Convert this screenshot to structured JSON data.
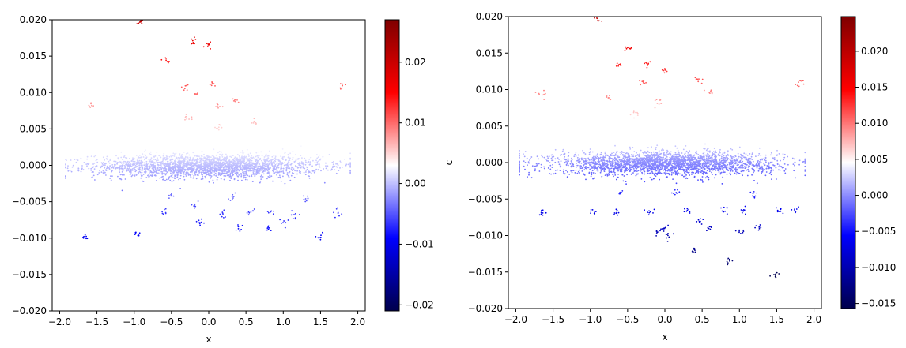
{
  "chart_data": [
    {
      "type": "scatter",
      "title": "",
      "xlabel": "x",
      "ylabel": "",
      "xlim": [
        -2.1,
        2.1
      ],
      "ylim": [
        -0.02,
        0.02
      ],
      "xticks": [
        "−2.0",
        "−1.5",
        "−1.0",
        "−0.5",
        "0.0",
        "0.5",
        "1.0",
        "1.5",
        "2.0"
      ],
      "xtick_values": [
        -2.0,
        -1.5,
        -1.0,
        -0.5,
        0.0,
        0.5,
        1.0,
        1.5,
        2.0
      ],
      "yticks": [
        "−0.020",
        "−0.015",
        "−0.010",
        "−0.005",
        "0.000",
        "0.005",
        "0.010",
        "0.015",
        "0.020"
      ],
      "ytick_values": [
        -0.02,
        -0.015,
        -0.01,
        -0.005,
        0.0,
        0.005,
        0.01,
        0.015,
        0.02
      ],
      "colormap": "seismic",
      "colorbar": {
        "range": [
          -0.021,
          0.027
        ],
        "ticks": [
          "−0.02",
          "−0.01",
          "0.00",
          "0.01",
          "0.02"
        ],
        "tick_values": [
          -0.02,
          -0.01,
          0.0,
          0.01,
          0.02
        ]
      },
      "band": {
        "x_range": [
          -1.92,
          1.9
        ],
        "y_center": -0.0001,
        "y_spread": 0.0008
      },
      "clusters": [
        {
          "x": -0.92,
          "y": 0.0198
        },
        {
          "x": -0.2,
          "y": 0.0172
        },
        {
          "x": 0.0,
          "y": 0.0165
        },
        {
          "x": -0.55,
          "y": 0.0143
        },
        {
          "x": -0.3,
          "y": 0.0108
        },
        {
          "x": -0.18,
          "y": 0.0098
        },
        {
          "x": 0.05,
          "y": 0.0112
        },
        {
          "x": 0.12,
          "y": 0.0082
        },
        {
          "x": 0.35,
          "y": 0.0088
        },
        {
          "x": 0.6,
          "y": 0.0058
        },
        {
          "x": -1.58,
          "y": 0.0082
        },
        {
          "x": 1.78,
          "y": 0.0108
        },
        {
          "x": -0.3,
          "y": 0.0065
        },
        {
          "x": 0.15,
          "y": 0.0052
        },
        {
          "x": -1.65,
          "y": -0.0098
        },
        {
          "x": -0.95,
          "y": -0.0094
        },
        {
          "x": -0.6,
          "y": -0.0065
        },
        {
          "x": -0.2,
          "y": -0.0055
        },
        {
          "x": -0.1,
          "y": -0.0078
        },
        {
          "x": 0.2,
          "y": -0.0068
        },
        {
          "x": 0.4,
          "y": -0.0085
        },
        {
          "x": 0.55,
          "y": -0.0065
        },
        {
          "x": 0.8,
          "y": -0.0088
        },
        {
          "x": 0.85,
          "y": -0.0065
        },
        {
          "x": 1.0,
          "y": -0.0078
        },
        {
          "x": 1.15,
          "y": -0.0068
        },
        {
          "x": 1.3,
          "y": -0.0045
        },
        {
          "x": 1.5,
          "y": -0.0098
        },
        {
          "x": 1.72,
          "y": -0.0065
        },
        {
          "x": -0.5,
          "y": -0.0042
        },
        {
          "x": 0.3,
          "y": -0.0045
        }
      ]
    },
    {
      "type": "scatter",
      "title": "",
      "xlabel": "x",
      "ylabel": "c",
      "xlim": [
        -2.1,
        2.1
      ],
      "ylim": [
        -0.02,
        0.02
      ],
      "xticks": [
        "−2.0",
        "−1.5",
        "−1.0",
        "−0.5",
        "0.0",
        "0.5",
        "1.0",
        "1.5",
        "2.0"
      ],
      "xtick_values": [
        -2.0,
        -1.5,
        -1.0,
        -0.5,
        0.0,
        0.5,
        1.0,
        1.5,
        2.0
      ],
      "yticks": [
        "−0.020",
        "−0.015",
        "−0.010",
        "−0.005",
        "0.000",
        "0.005",
        "0.010",
        "0.015",
        "0.020"
      ],
      "ytick_values": [
        -0.02,
        -0.015,
        -0.01,
        -0.005,
        0.0,
        0.005,
        0.01,
        0.015,
        0.02
      ],
      "colormap": "seismic",
      "colorbar": {
        "range": [
          -0.0157,
          0.0248
        ],
        "ticks": [
          "−0.015",
          "−0.010",
          "−0.005",
          "0.000",
          "0.005",
          "0.010",
          "0.015",
          "0.020"
        ],
        "tick_values": [
          -0.015,
          -0.01,
          -0.005,
          0.0,
          0.005,
          0.01,
          0.015,
          0.02
        ]
      },
      "band": {
        "x_range": [
          -1.95,
          1.88
        ],
        "y_center": -0.0001,
        "y_spread": 0.0008
      },
      "clusters": [
        {
          "x": -0.9,
          "y": 0.0198
        },
        {
          "x": -0.5,
          "y": 0.0157
        },
        {
          "x": -0.6,
          "y": 0.0133
        },
        {
          "x": -0.25,
          "y": 0.0135
        },
        {
          "x": 0.0,
          "y": 0.0125
        },
        {
          "x": -0.3,
          "y": 0.011
        },
        {
          "x": 0.45,
          "y": 0.0113
        },
        {
          "x": 0.6,
          "y": 0.0097
        },
        {
          "x": -1.65,
          "y": 0.0095
        },
        {
          "x": -0.75,
          "y": 0.0088
        },
        {
          "x": -0.1,
          "y": 0.0082
        },
        {
          "x": 1.8,
          "y": 0.0109
        },
        {
          "x": -0.4,
          "y": 0.0068
        },
        {
          "x": -1.65,
          "y": -0.0068
        },
        {
          "x": -0.95,
          "y": -0.0068
        },
        {
          "x": -0.65,
          "y": -0.0068
        },
        {
          "x": -0.2,
          "y": -0.0068
        },
        {
          "x": -0.1,
          "y": -0.0095
        },
        {
          "x": 0.0,
          "y": -0.009
        },
        {
          "x": 0.05,
          "y": -0.0102
        },
        {
          "x": 0.3,
          "y": -0.0065
        },
        {
          "x": 0.4,
          "y": -0.012
        },
        {
          "x": 0.45,
          "y": -0.008
        },
        {
          "x": 0.6,
          "y": -0.009
        },
        {
          "x": 0.8,
          "y": -0.0065
        },
        {
          "x": 0.85,
          "y": -0.0135
        },
        {
          "x": 1.0,
          "y": -0.0095
        },
        {
          "x": 1.05,
          "y": -0.0065
        },
        {
          "x": 1.25,
          "y": -0.0088
        },
        {
          "x": 1.5,
          "y": -0.0155
        },
        {
          "x": 1.55,
          "y": -0.0065
        },
        {
          "x": 1.75,
          "y": -0.0065
        },
        {
          "x": -0.6,
          "y": -0.0042
        },
        {
          "x": 0.15,
          "y": -0.0042
        },
        {
          "x": 1.2,
          "y": -0.0045
        }
      ]
    }
  ]
}
